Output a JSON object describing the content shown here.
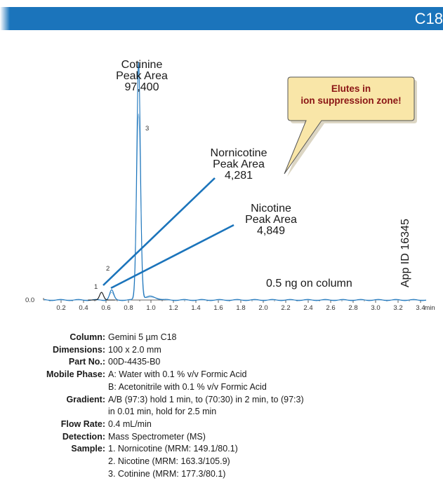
{
  "header": {
    "badge": "C18"
  },
  "chart_data": {
    "type": "line",
    "xlabel": "min",
    "ylabel": "",
    "xlim": [
      0,
      3.5
    ],
    "y_tick_labels": [
      "0.0"
    ],
    "x_ticks": [
      0.2,
      0.4,
      0.6,
      0.8,
      1.0,
      1.2,
      1.4,
      1.6,
      1.8,
      2.0,
      2.2,
      2.4,
      2.6,
      2.8,
      3.0,
      3.2,
      3.4
    ],
    "x_tick_labels": [
      "0.2",
      "0.4",
      "0.6",
      "0.8",
      "1.0",
      "1.2",
      "1.4",
      "1.6",
      "1.8",
      "2.0",
      "2.2",
      "2.4",
      "2.6",
      "2.8",
      "3.0",
      "3.2",
      "3.4"
    ],
    "peaks": [
      {
        "number": "1",
        "name": "Nornicotine",
        "retention_time": 0.56
      },
      {
        "number": "2",
        "name": "Nicotine",
        "retention_time": 0.65
      },
      {
        "number": "3",
        "name": "Cotinine",
        "retention_time": 0.89
      }
    ],
    "annotations": {
      "cotinine": [
        "Cotinine",
        "Peak Area",
        "97,400"
      ],
      "nornicotine": [
        "Nornicotine",
        "Peak Area",
        "4,281"
      ],
      "nicotine": [
        "Nicotine",
        "Peak Area",
        "4,849"
      ],
      "on_column": "0.5 ng on column",
      "app_id": "App ID 16345",
      "callout": [
        "Elutes in",
        "ion suppression zone!"
      ]
    },
    "colors": {
      "trace": "#1b74bb",
      "trace_light": "#8bb9dd",
      "nornicotine_trace": "#111111",
      "callout_fill": "#f9e6a8"
    }
  },
  "conditions": [
    {
      "key": "Column:",
      "values": [
        "Gemini 5 µm C18"
      ]
    },
    {
      "key": "Dimensions:",
      "values": [
        "100 x 2.0 mm"
      ]
    },
    {
      "key": "Part No.:",
      "values": [
        "00D-4435-B0"
      ]
    },
    {
      "key": "Mobile Phase:",
      "values": [
        "A: Water with 0.1 % v/v Formic Acid",
        "B: Acetonitrile with 0.1 % v/v Formic Acid"
      ]
    },
    {
      "key": "Gradient:",
      "values": [
        "A/B (97:3) hold 1 min, to (70:30) in 2 min, to (97:3)",
        "in 0.01 min, hold for 2.5 min"
      ]
    },
    {
      "key": "Flow Rate:",
      "values": [
        "0.4 mL/min"
      ]
    },
    {
      "key": "Detection:",
      "values": [
        "Mass Spectrometer (MS)"
      ]
    },
    {
      "key": "Sample:",
      "values": [
        "1. Nornicotine (MRM: 149.1/80.1)",
        "2. Nicotine (MRM: 163.3/105.9)",
        "3. Cotinine (MRM: 177.3/80.1)"
      ]
    }
  ]
}
